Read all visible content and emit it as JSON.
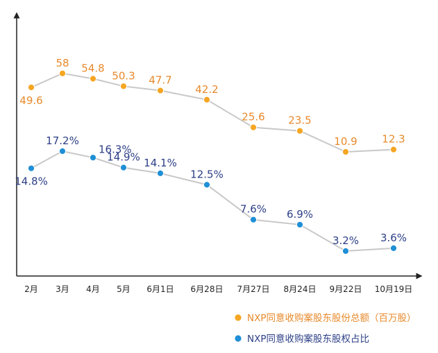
{
  "chart_data": {
    "type": "line",
    "categories": [
      "2月",
      "3月",
      "4月",
      "5月",
      "6月1日",
      "6月28日",
      "7月27日",
      "8月24日",
      "9月22日",
      "10月19日"
    ],
    "series": [
      {
        "name": "NXP同意收购案股东股份总额（百万股）",
        "values": [
          49.6,
          58,
          54.8,
          50.3,
          47.7,
          42.2,
          25.6,
          23.5,
          10.9,
          12.3
        ],
        "labels": [
          "49.6",
          "58",
          "54.8",
          "50.3",
          "47.7",
          "42.2",
          "25.6",
          "23.5",
          "10.9",
          "12.3"
        ],
        "color": "#f5a623",
        "label_color": "#e8892b"
      },
      {
        "name": "NXP同意收购案股东股权占比",
        "values": [
          14.8,
          17.2,
          16.3,
          14.9,
          14.1,
          12.5,
          7.6,
          6.9,
          3.2,
          3.6
        ],
        "labels": [
          "14.8%",
          "17.2%",
          "16.3%",
          "14.9%",
          "14.1%",
          "12.5%",
          "7.6%",
          "6.9%",
          "3.2%",
          "3.6%"
        ],
        "color": "#1f8fd6",
        "label_color": "#2c3f86"
      }
    ],
    "line_color": "#c8c8c8",
    "legend_position": "bottom-right",
    "grid": false
  }
}
